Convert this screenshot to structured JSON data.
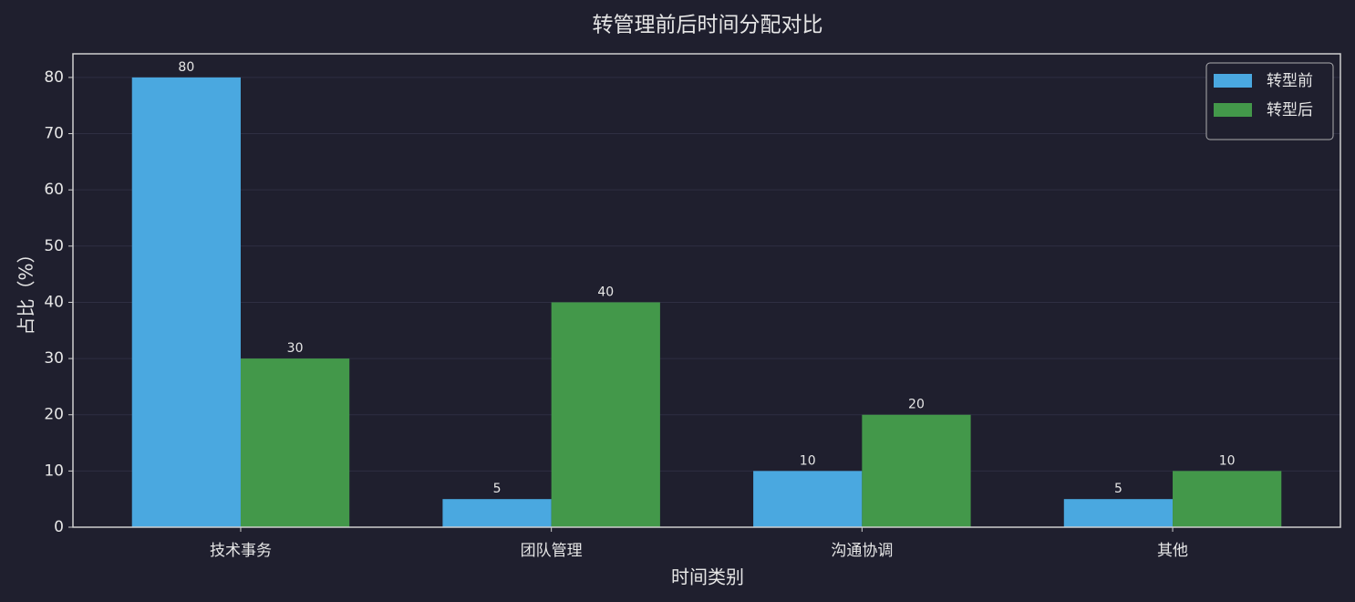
{
  "chart_data": {
    "type": "bar",
    "title": "转管理前后时间分配对比",
    "xlabel": "时间类别",
    "ylabel": "占比（%）",
    "categories": [
      "技术事务",
      "团队管理",
      "沟通协调",
      "其他"
    ],
    "series": [
      {
        "name": "转型前",
        "color": "#4aa8e0",
        "values": [
          80,
          5,
          10,
          5
        ]
      },
      {
        "name": "转型后",
        "color": "#43984a",
        "values": [
          30,
          40,
          20,
          10
        ]
      }
    ],
    "ylim": [
      0,
      84.2
    ],
    "yticks": [
      0,
      10,
      20,
      30,
      40,
      50,
      60,
      70,
      80
    ],
    "grid": true,
    "legend": "upper right"
  }
}
